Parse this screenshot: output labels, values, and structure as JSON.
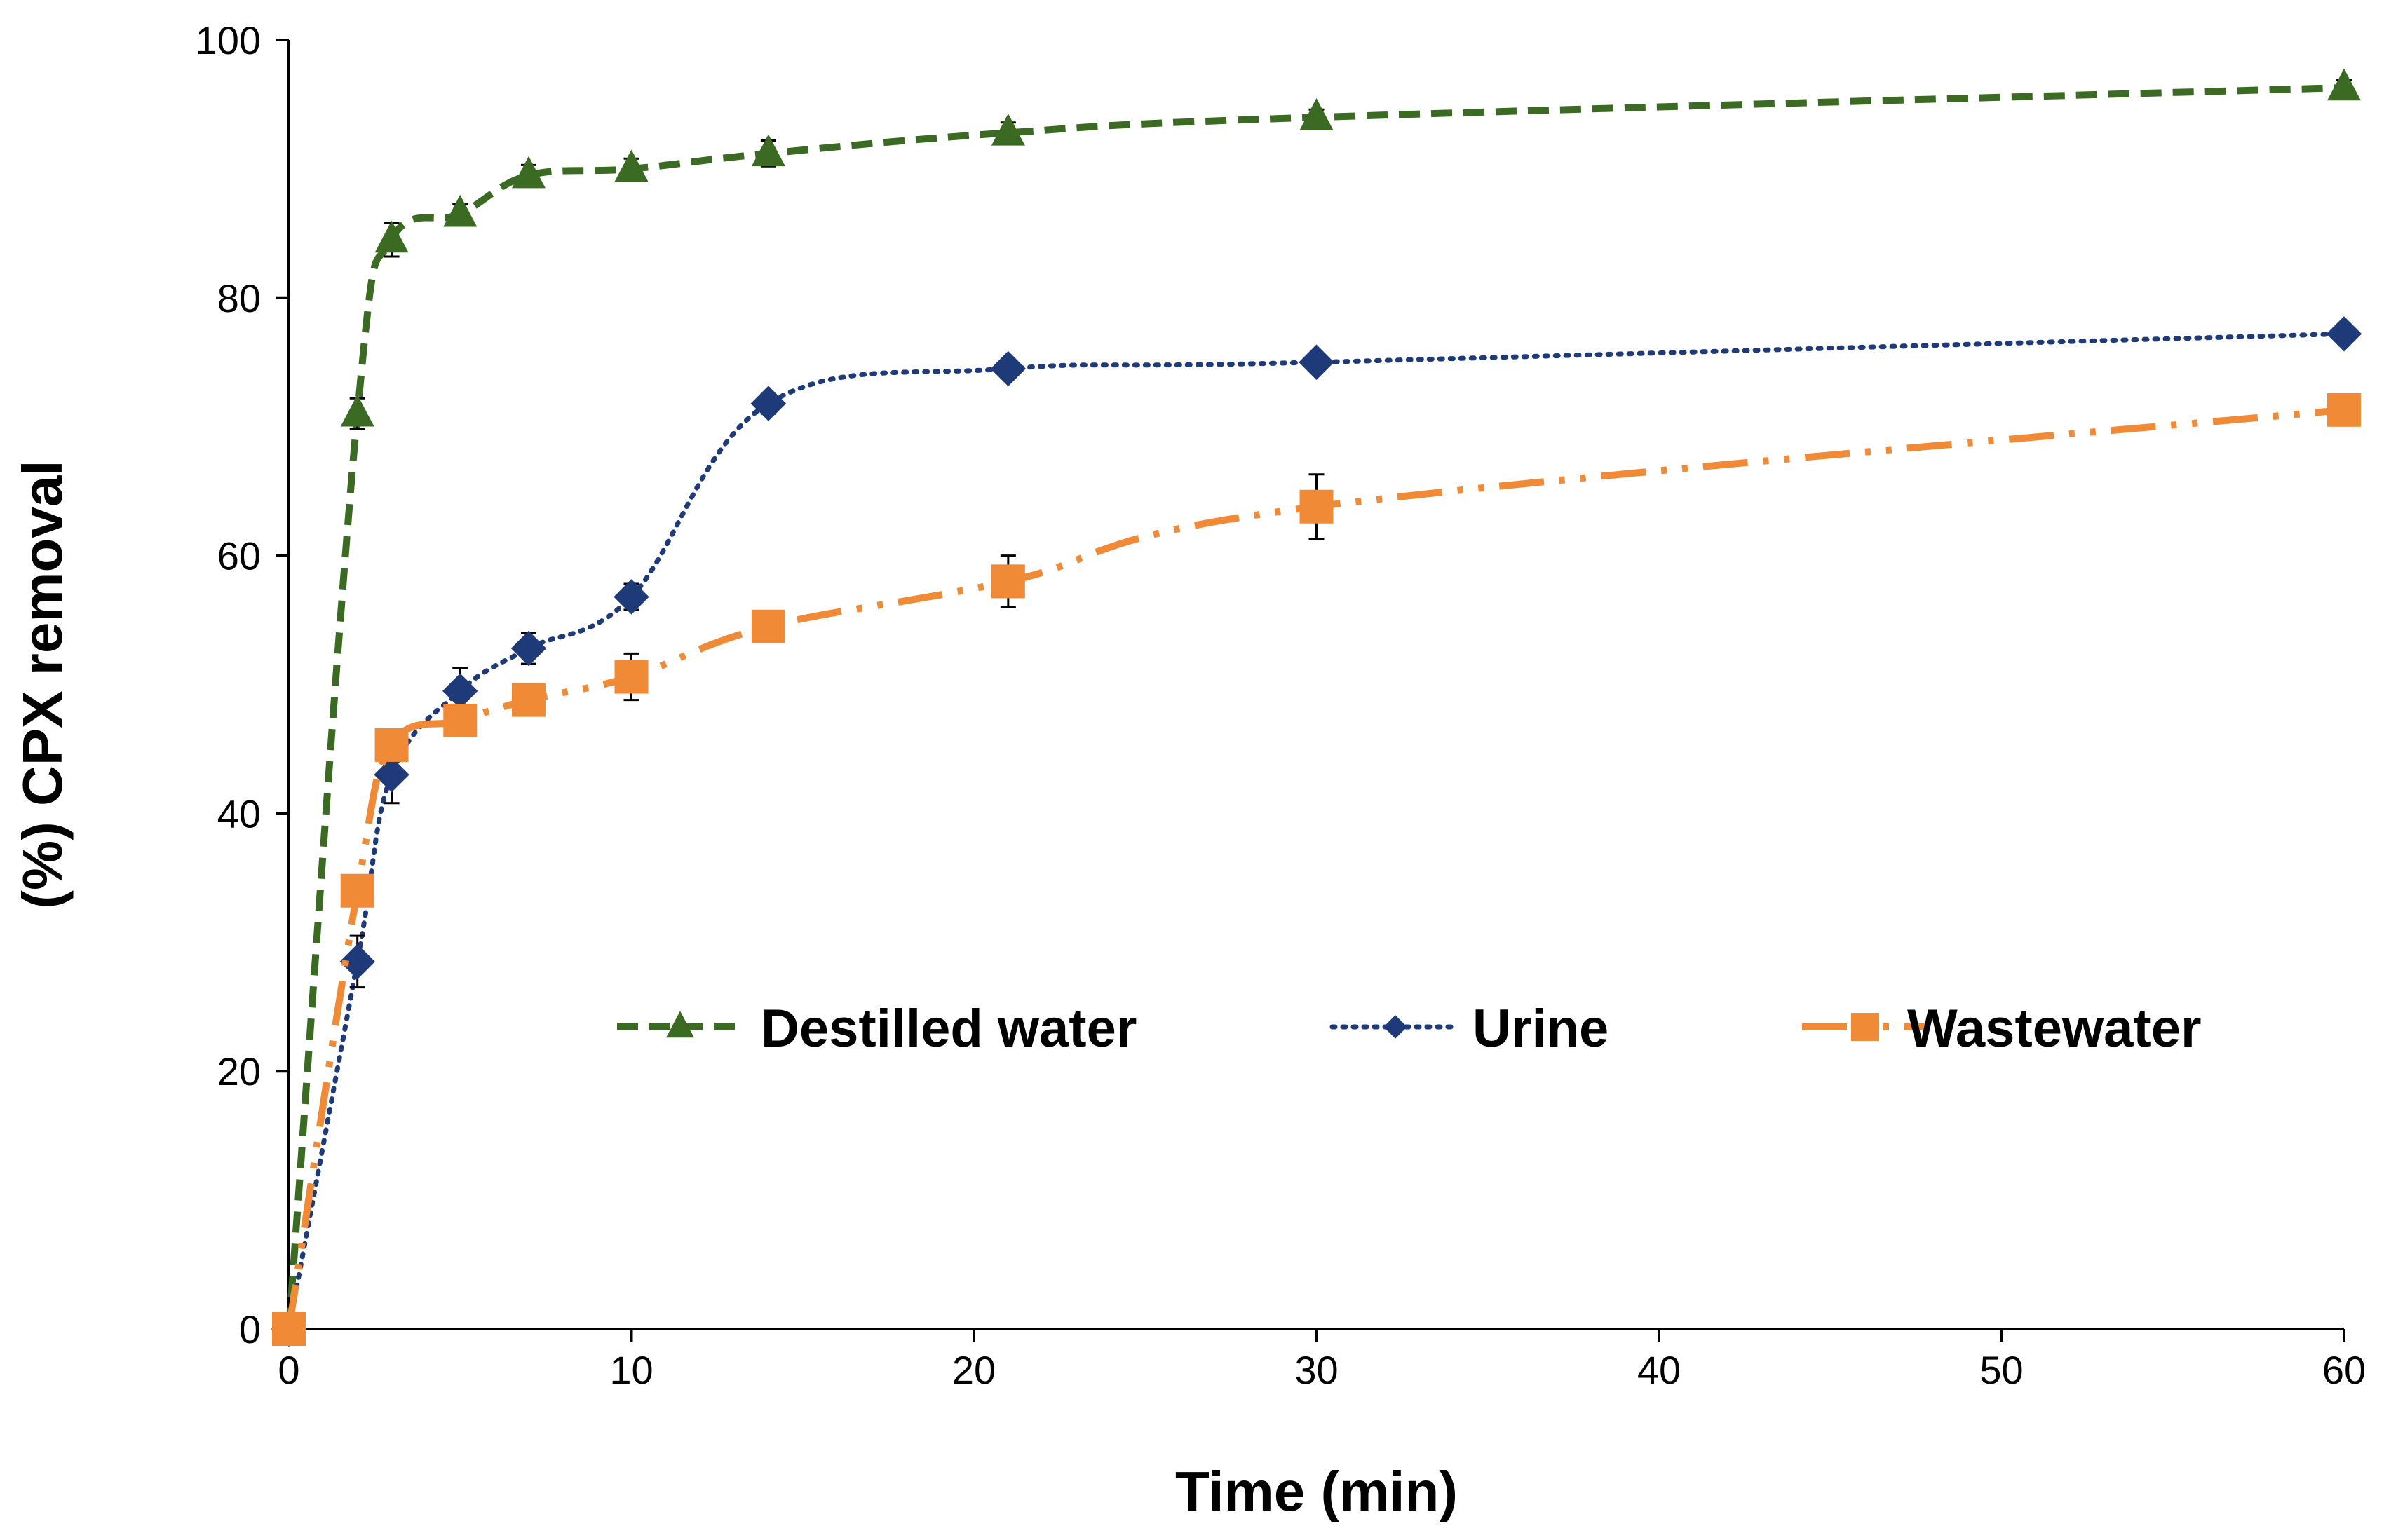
{
  "chart_data": {
    "type": "line",
    "title": "",
    "xlabel": "Time (min)",
    "ylabel": "(%) CPX removal",
    "xlim": [
      0,
      60
    ],
    "ylim": [
      0,
      100
    ],
    "x_ticks": [
      0,
      10,
      20,
      30,
      40,
      50,
      60
    ],
    "y_ticks": [
      0,
      20,
      40,
      60,
      80,
      100
    ],
    "grid": false,
    "legend_position": "center",
    "series": [
      {
        "name": "Destilled water",
        "color": "#3b6a22",
        "dash": "dashed",
        "marker": "triangle",
        "x": [
          0,
          2,
          3,
          5,
          7,
          10,
          14,
          21,
          30,
          60
        ],
        "values": [
          0,
          71,
          84.5,
          86.5,
          89.5,
          90,
          91.2,
          92.8,
          94,
          96.3
        ],
        "errors": [
          0,
          1.2,
          1.3,
          0.8,
          0.8,
          0.8,
          1.0,
          0.8,
          0.6,
          0.6
        ]
      },
      {
        "name": "Urine",
        "color": "#1f3a78",
        "dash": "dotted",
        "marker": "diamond",
        "x": [
          0,
          2,
          3,
          5,
          7,
          10,
          14,
          21,
          30,
          60
        ],
        "values": [
          0,
          28.5,
          43,
          49.5,
          52.8,
          56.8,
          71.8,
          74.5,
          75,
          77.2
        ],
        "errors": [
          0,
          2.0,
          2.2,
          1.8,
          1.2,
          1.0,
          0.8,
          0.6,
          0.6,
          0.6
        ]
      },
      {
        "name": "Wastewater",
        "color": "#f08a36",
        "dash": "dashdotdot",
        "marker": "square",
        "x": [
          0,
          2,
          3,
          5,
          7,
          10,
          14,
          21,
          30,
          60
        ],
        "values": [
          0,
          34,
          45.3,
          47.2,
          48.8,
          50.6,
          54.5,
          58,
          63.8,
          71.3
        ],
        "errors": [
          0,
          1.0,
          0.8,
          0.8,
          0.8,
          1.8,
          0.8,
          2.0,
          2.5,
          0.8
        ]
      }
    ]
  }
}
